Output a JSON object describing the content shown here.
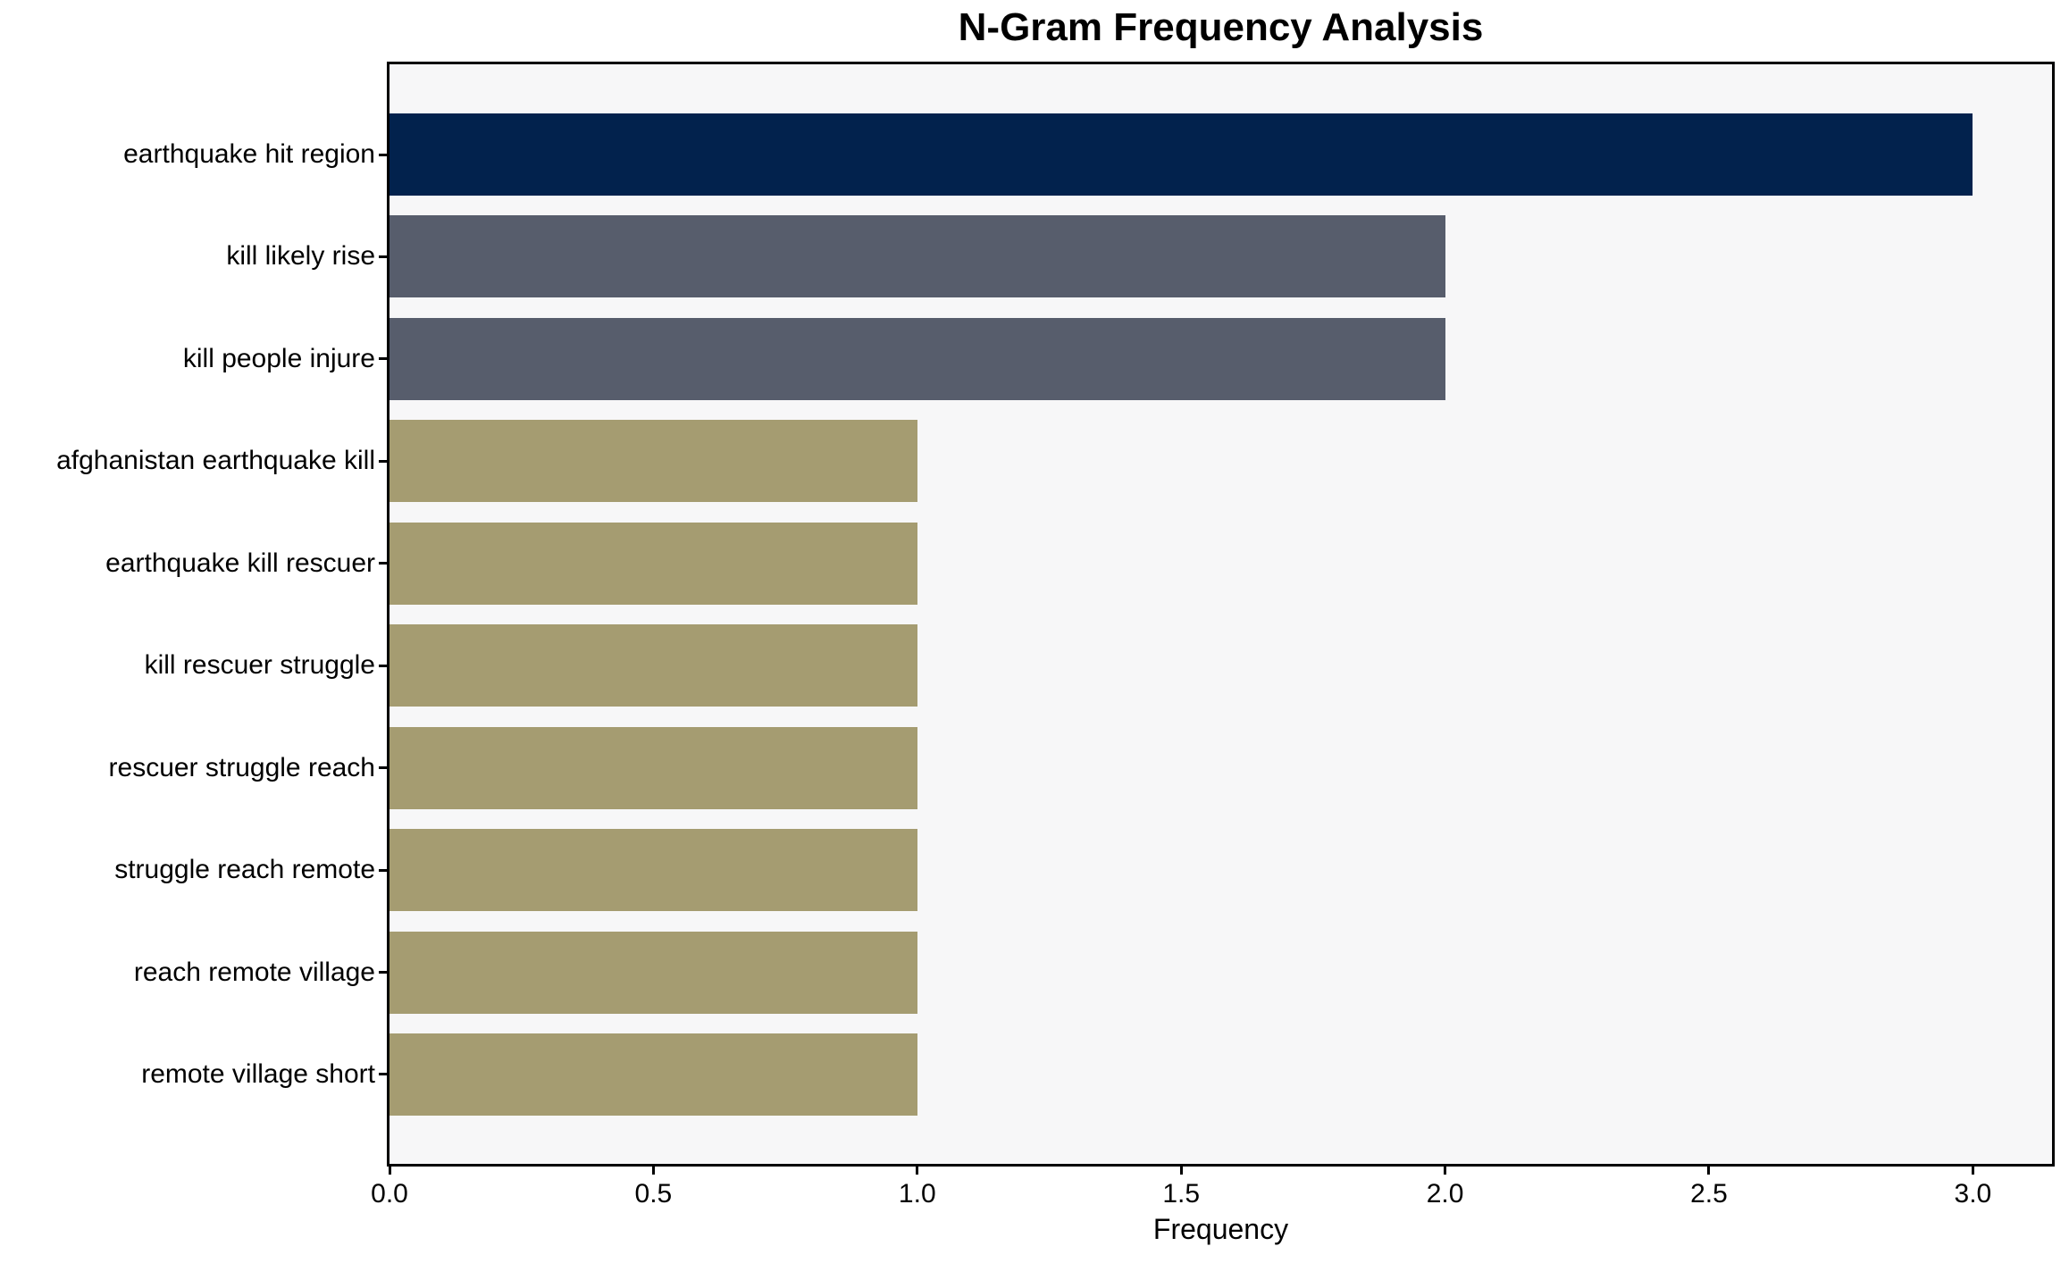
{
  "figure": {
    "background_color": "#ffffff",
    "plot_background_color": "#f7f7f8",
    "spine_color": "#000000"
  },
  "chart_data": {
    "type": "bar",
    "orientation": "horizontal",
    "title": "N-Gram Frequency Analysis",
    "xlabel": "Frequency",
    "ylabel": "",
    "categories": [
      "earthquake hit region",
      "kill likely rise",
      "kill people injure",
      "afghanistan earthquake kill",
      "earthquake kill rescuer",
      "kill rescuer struggle",
      "rescuer struggle reach",
      "struggle reach remote",
      "reach remote village",
      "remote village short"
    ],
    "values": [
      3,
      2,
      2,
      1,
      1,
      1,
      1,
      1,
      1,
      1
    ],
    "bar_colors": [
      "#02224d",
      "#575d6c",
      "#575d6c",
      "#a59c71",
      "#a59c71",
      "#a59c71",
      "#a59c71",
      "#a59c71",
      "#a59c71",
      "#a59c71"
    ],
    "xlim": [
      0,
      3.15
    ],
    "xticks": [
      0.0,
      0.5,
      1.0,
      1.5,
      2.0,
      2.5,
      3.0
    ],
    "xtick_labels": [
      "0.0",
      "0.5",
      "1.0",
      "1.5",
      "2.0",
      "2.5",
      "3.0"
    ],
    "grid": false,
    "legend": null
  }
}
